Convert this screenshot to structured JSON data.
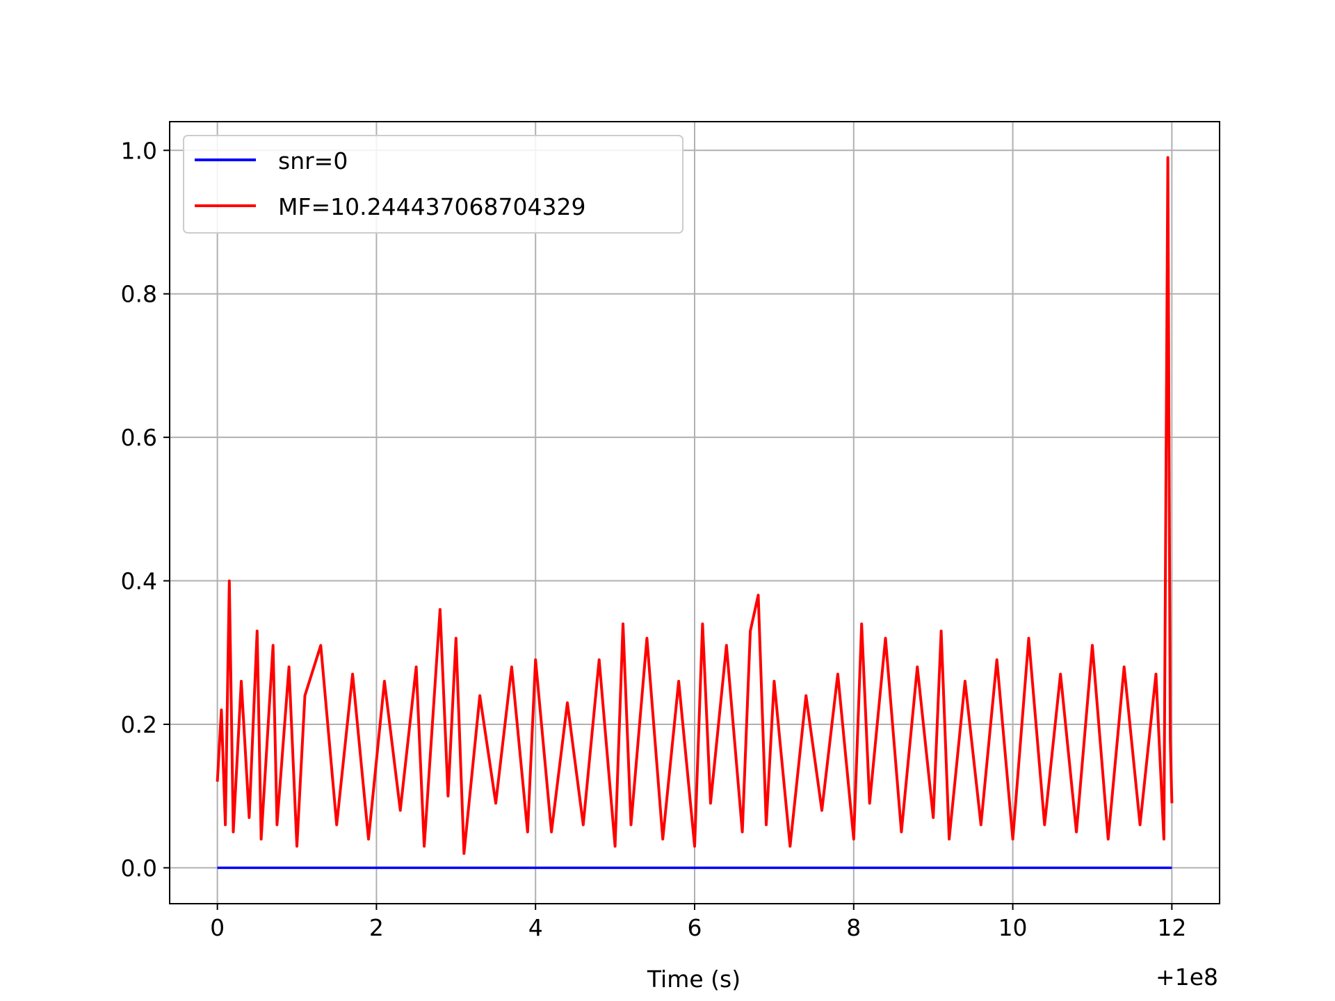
{
  "chart_data": {
    "type": "line",
    "title": "",
    "xlabel": "Time (s)",
    "ylabel": "",
    "x_offset_label": "+1e8",
    "xlim": [
      -0.6,
      12.6
    ],
    "ylim": [
      -0.05,
      1.04
    ],
    "xticks": [
      0,
      2,
      4,
      6,
      8,
      10,
      12
    ],
    "xtick_labels": [
      "0",
      "2",
      "4",
      "6",
      "8",
      "10",
      "12"
    ],
    "yticks": [
      0.0,
      0.2,
      0.4,
      0.6,
      0.8,
      1.0
    ],
    "ytick_labels": [
      "0.0",
      "0.2",
      "0.4",
      "0.6",
      "0.8",
      "1.0"
    ],
    "grid": true,
    "legend_position": "upper-left",
    "series": [
      {
        "name": "snr=0",
        "color": "#0000ff",
        "x": [
          0,
          12
        ],
        "y": [
          0.0,
          0.0
        ]
      },
      {
        "name": "MF=10.244437068704329",
        "color": "#ff0000",
        "x": [
          0.0,
          0.05,
          0.1,
          0.15,
          0.2,
          0.3,
          0.4,
          0.5,
          0.55,
          0.7,
          0.75,
          0.9,
          1.0,
          1.1,
          1.3,
          1.5,
          1.7,
          1.9,
          2.1,
          2.3,
          2.5,
          2.6,
          2.8,
          2.9,
          3.0,
          3.1,
          3.3,
          3.5,
          3.7,
          3.9,
          4.0,
          4.2,
          4.4,
          4.6,
          4.8,
          5.0,
          5.1,
          5.2,
          5.4,
          5.6,
          5.8,
          6.0,
          6.1,
          6.2,
          6.4,
          6.6,
          6.7,
          6.8,
          6.9,
          7.0,
          7.2,
          7.4,
          7.6,
          7.8,
          8.0,
          8.1,
          8.2,
          8.4,
          8.6,
          8.8,
          9.0,
          9.1,
          9.2,
          9.4,
          9.6,
          9.8,
          10.0,
          10.2,
          10.4,
          10.6,
          10.8,
          11.0,
          11.2,
          11.4,
          11.6,
          11.8,
          11.9,
          11.95,
          11.98,
          12.0
        ],
        "y": [
          0.12,
          0.22,
          0.06,
          0.4,
          0.05,
          0.26,
          0.07,
          0.33,
          0.04,
          0.31,
          0.06,
          0.28,
          0.03,
          0.24,
          0.31,
          0.06,
          0.27,
          0.04,
          0.26,
          0.08,
          0.28,
          0.03,
          0.36,
          0.1,
          0.32,
          0.02,
          0.24,
          0.09,
          0.28,
          0.05,
          0.29,
          0.05,
          0.23,
          0.06,
          0.29,
          0.03,
          0.34,
          0.06,
          0.32,
          0.04,
          0.26,
          0.03,
          0.34,
          0.09,
          0.31,
          0.05,
          0.33,
          0.38,
          0.06,
          0.26,
          0.03,
          0.24,
          0.08,
          0.27,
          0.04,
          0.34,
          0.09,
          0.32,
          0.05,
          0.28,
          0.07,
          0.33,
          0.04,
          0.26,
          0.06,
          0.29,
          0.04,
          0.32,
          0.06,
          0.27,
          0.05,
          0.31,
          0.04,
          0.28,
          0.06,
          0.27,
          0.04,
          0.99,
          0.18,
          0.09
        ]
      }
    ]
  }
}
